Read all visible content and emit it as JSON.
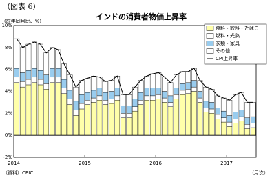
{
  "chart_data": {
    "type": "bar",
    "stacked": true,
    "figure_label": "（図表 6）",
    "title": "インドの消費者物価上昇率",
    "y_axis_label": "(前年同月比、%)",
    "x_axis_label": "（月次）",
    "source": "（資料）CEIC",
    "categories": [
      "2014",
      null,
      null,
      null,
      null,
      null,
      null,
      null,
      null,
      null,
      null,
      null,
      "2015",
      null,
      null,
      null,
      null,
      null,
      null,
      null,
      null,
      null,
      null,
      null,
      "2016",
      null,
      null,
      null,
      null,
      null,
      null,
      null,
      null,
      null,
      null,
      null,
      "2017",
      null,
      null,
      null,
      null
    ],
    "series": [
      {
        "name": "食料・飲料・たばこ",
        "color": "#ffffaa",
        "values": [
          4.8,
          4.4,
          4.6,
          4.8,
          4.6,
          4.2,
          4.8,
          4.8,
          3.8,
          2.8,
          1.8,
          2.4,
          2.8,
          3.0,
          3.2,
          2.8,
          2.9,
          3.2,
          1.6,
          1.6,
          2.2,
          2.8,
          3.2,
          3.2,
          3.3,
          3.0,
          2.6,
          3.3,
          3.7,
          3.8,
          4.0,
          3.0,
          2.1,
          2.0,
          1.5,
          1.2,
          0.8,
          1.1,
          1.3,
          0.6,
          0.7
        ]
      },
      {
        "name": "燃料・光熱",
        "color": "#ffffff",
        "values": [
          0.5,
          0.5,
          0.5,
          0.5,
          0.5,
          0.5,
          0.5,
          0.5,
          0.5,
          0.5,
          0.5,
          0.5,
          0.4,
          0.4,
          0.4,
          0.4,
          0.4,
          0.4,
          0.4,
          0.4,
          0.4,
          0.4,
          0.4,
          0.4,
          0.4,
          0.4,
          0.4,
          0.4,
          0.4,
          0.4,
          0.4,
          0.4,
          0.4,
          0.4,
          0.4,
          0.4,
          0.4,
          0.4,
          0.4,
          0.4,
          0.4
        ]
      },
      {
        "name": "衣類・家具",
        "color": "#99ccee",
        "values": [
          0.8,
          0.8,
          0.8,
          0.8,
          0.8,
          0.8,
          0.8,
          0.8,
          0.8,
          0.8,
          0.8,
          0.8,
          0.7,
          0.7,
          0.7,
          0.7,
          0.7,
          0.7,
          0.7,
          0.7,
          0.7,
          0.7,
          0.7,
          0.7,
          0.6,
          0.6,
          0.6,
          0.6,
          0.6,
          0.6,
          0.6,
          0.6,
          0.6,
          0.6,
          0.6,
          0.6,
          0.6,
          0.6,
          0.6,
          0.6,
          0.6
        ]
      },
      {
        "name": "その他",
        "color": "#ffffff",
        "values": [
          2.7,
          2.3,
          2.4,
          2.4,
          2.4,
          2.0,
          1.9,
          1.7,
          1.4,
          1.4,
          1.3,
          1.3,
          1.3,
          1.3,
          1.0,
          1.0,
          1.0,
          1.1,
          1.0,
          1.0,
          1.1,
          1.1,
          1.1,
          1.3,
          1.4,
          1.3,
          1.2,
          1.2,
          1.1,
          1.0,
          1.1,
          1.0,
          1.3,
          1.2,
          1.1,
          1.2,
          1.4,
          1.6,
          1.6,
          1.4,
          1.3
        ]
      },
      {
        "name": "CPI上昇率",
        "type": "line",
        "color": "#000000",
        "values": [
          8.8,
          8.0,
          8.3,
          8.5,
          8.3,
          7.5,
          8.0,
          7.8,
          6.5,
          5.5,
          4.4,
          5.0,
          5.2,
          5.4,
          5.3,
          4.9,
          5.0,
          5.4,
          3.7,
          3.7,
          4.4,
          5.0,
          5.4,
          5.6,
          5.7,
          5.3,
          4.8,
          5.5,
          5.8,
          5.8,
          6.1,
          5.0,
          4.4,
          4.2,
          3.6,
          3.4,
          3.2,
          3.7,
          3.9,
          3.0,
          3.0
        ]
      }
    ],
    "ylim": [
      -2,
      10
    ],
    "yticks": [
      {
        "value": -2,
        "label": "-2%"
      },
      {
        "value": 0,
        "label": "0%"
      },
      {
        "value": 2,
        "label": "2%"
      },
      {
        "value": 4,
        "label": "4%"
      },
      {
        "value": 6,
        "label": "6%"
      },
      {
        "value": 8,
        "label": "8%"
      },
      {
        "value": 10,
        "label": "10%"
      }
    ],
    "grid": false,
    "legend": "upper right"
  }
}
